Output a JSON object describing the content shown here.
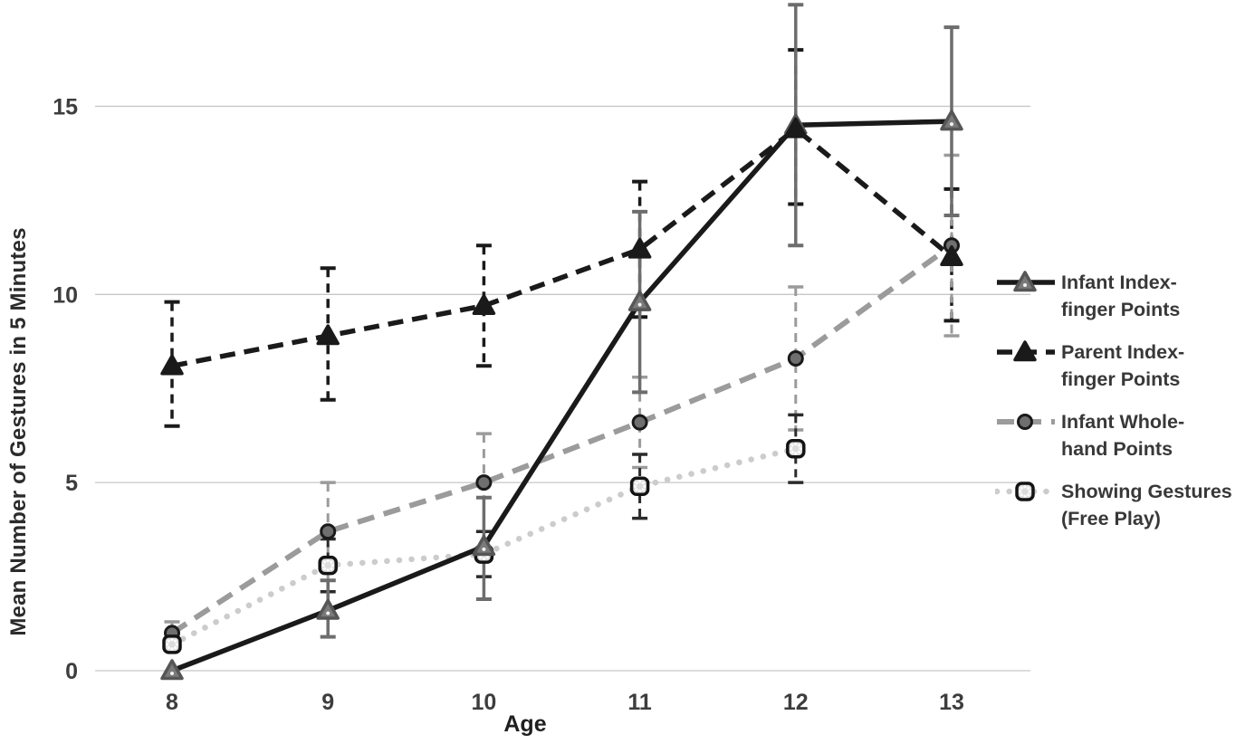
{
  "chart_data": {
    "type": "line",
    "xlabel": "Age",
    "ylabel": "Mean Number of Gestures in 5 Minutes",
    "x": [
      8,
      9,
      10,
      11,
      12,
      13
    ],
    "yticks": [
      0,
      5,
      10,
      15
    ],
    "ylim": [
      0,
      17.8
    ],
    "grid": "horizontal",
    "grid_color": "#c7c7c7",
    "tick_text_color": "#3d3d3d",
    "legend_position": "right",
    "series": [
      {
        "name": "Infant Index-finger Points",
        "legend_lines": [
          "Infant Index-",
          "finger Points"
        ],
        "line": "solid",
        "line_color": "#1a1a1a",
        "marker": "triangle",
        "marker_fill": "#7a7a7a",
        "marker_stroke": "#565656",
        "error_line": "solid",
        "error_color": "#6d6d6d",
        "values": [
          0,
          1.6,
          3.3,
          9.8,
          14.5,
          14.6
        ],
        "error_high": [
          0,
          2.4,
          4.6,
          12.2,
          17.7,
          17.1
        ],
        "error_low": [
          0,
          0.9,
          1.9,
          7.4,
          11.3,
          12.1
        ]
      },
      {
        "name": "Parent Index-finger Points",
        "legend_lines": [
          "Parent Index-",
          "finger Points"
        ],
        "line": "dashed",
        "line_color": "#1a1a1a",
        "marker": "triangle",
        "marker_fill": "#1a1a1a",
        "marker_stroke": "#1a1a1a",
        "error_line": "dashed",
        "error_color": "#1a1a1a",
        "values": [
          8.1,
          8.9,
          9.7,
          11.2,
          14.4,
          11.0
        ],
        "error_high": [
          9.8,
          10.7,
          11.3,
          13.0,
          16.5,
          12.8
        ],
        "error_low": [
          6.5,
          7.2,
          8.1,
          9.4,
          12.4,
          9.3
        ]
      },
      {
        "name": "Infant Whole-hand Points",
        "legend_lines": [
          "Infant Whole-",
          "hand Points"
        ],
        "line": "long-dashed",
        "line_color": "#9b9b9b",
        "marker": "circle",
        "marker_fill": "#6f6f6f",
        "marker_stroke": "#1a1a1a",
        "error_line": "dashed",
        "error_color": "#9b9b9b",
        "values": [
          1.0,
          3.7,
          5.0,
          6.6,
          8.3,
          11.3
        ],
        "error_high": [
          1.3,
          5.0,
          6.3,
          7.8,
          10.2,
          13.7
        ],
        "error_low": [
          0.7,
          2.4,
          3.7,
          5.4,
          6.4,
          8.9
        ]
      },
      {
        "name": "Showing Gestures (Free Play)",
        "legend_lines": [
          "Showing Gestures",
          "(Free Play)"
        ],
        "line": "dotted",
        "line_color": "#cccccc",
        "marker": "square",
        "marker_fill": "#dcdcdc",
        "marker_stroke": "#141414",
        "error_line": "dashed",
        "error_color": "#2b2b2b",
        "values": [
          0.7,
          2.8,
          3.1,
          4.9,
          5.9,
          null
        ],
        "error_high": [
          0.7,
          3.5,
          3.7,
          5.75,
          6.8,
          null
        ],
        "error_low": [
          0.7,
          2.1,
          2.5,
          4.05,
          5.0,
          null
        ]
      }
    ]
  }
}
